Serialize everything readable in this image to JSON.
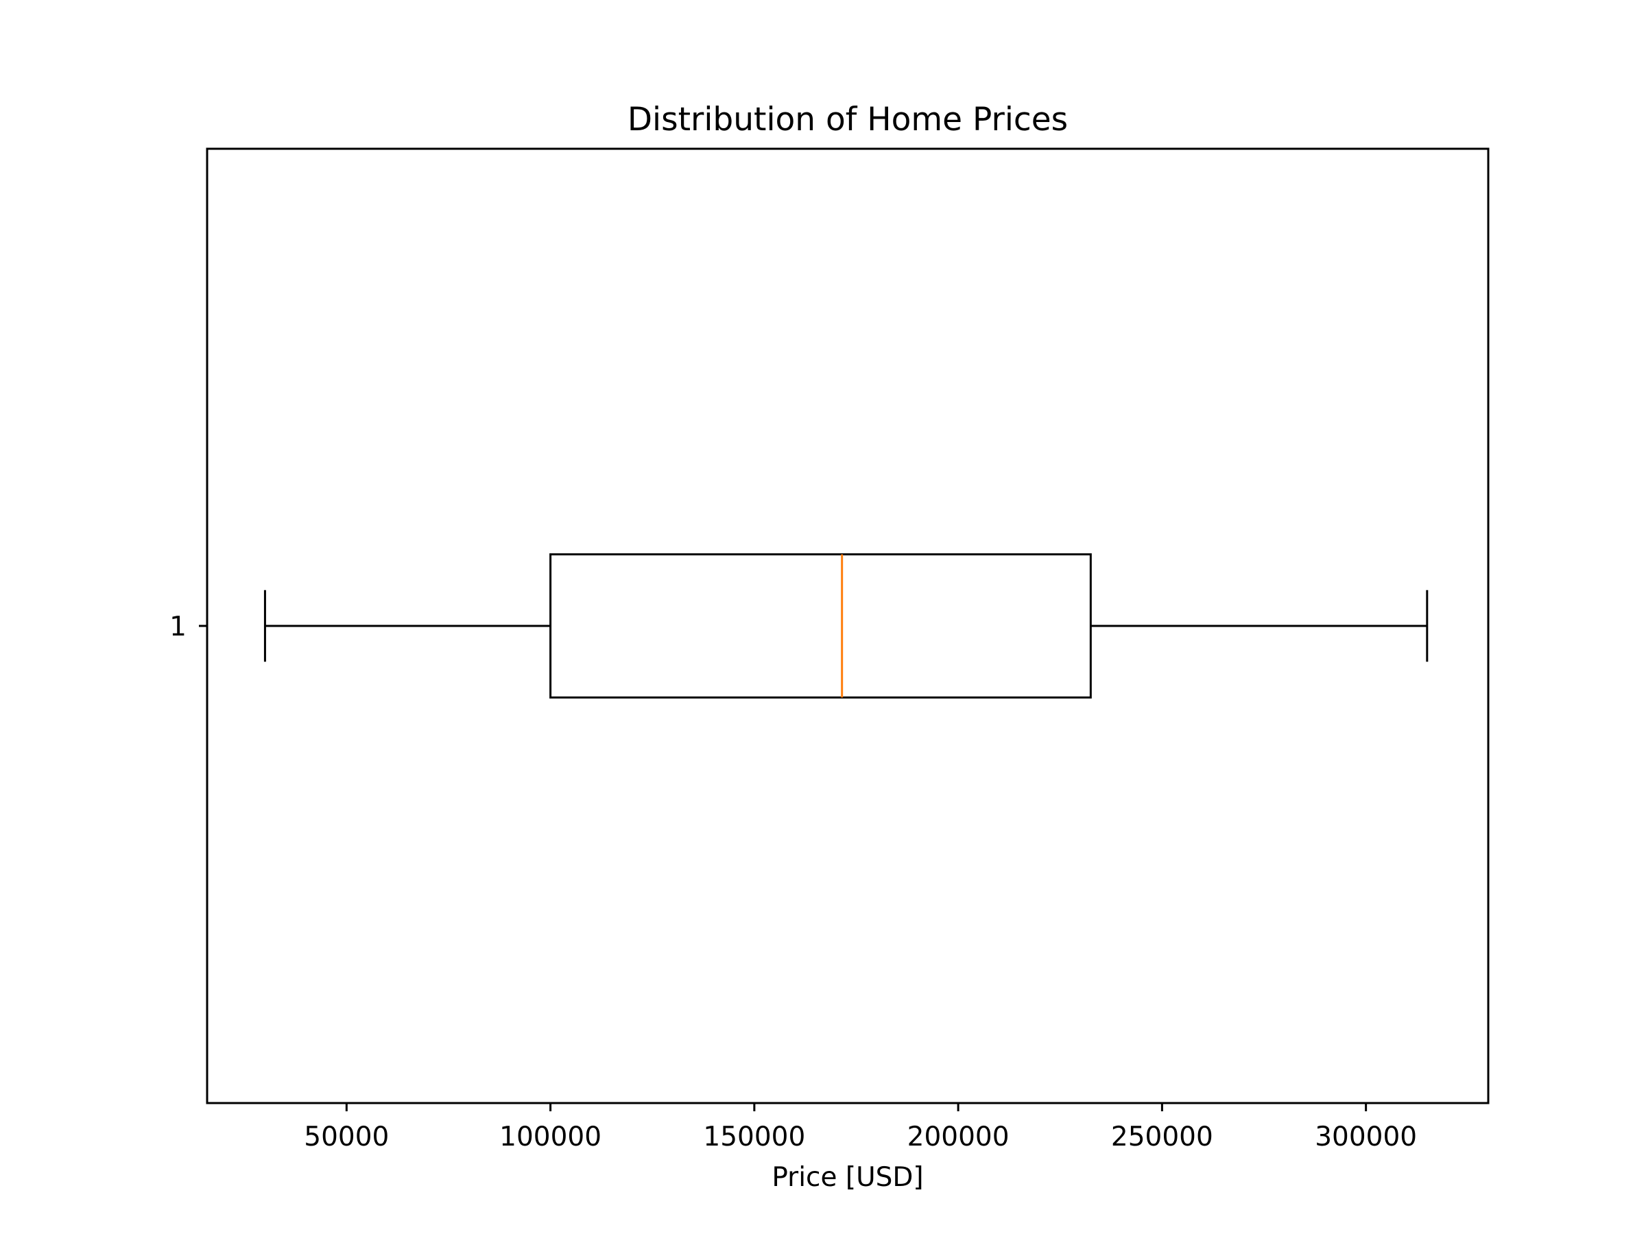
{
  "chart_data": {
    "type": "boxplot",
    "orientation": "horizontal",
    "title": "Distribution of Home Prices",
    "xlabel": "Price [USD]",
    "ylabel": "",
    "xlim": [
      15800,
      330000
    ],
    "x_ticks": [
      50000,
      100000,
      150000,
      200000,
      250000,
      300000
    ],
    "x_tick_labels": [
      "50000",
      "100000",
      "150000",
      "200000",
      "250000",
      "300000"
    ],
    "categories": [
      "1"
    ],
    "series": [
      {
        "whisker_low": 30000,
        "q1": 100000,
        "median": 171500,
        "q3": 232500,
        "whisker_high": 315000
      }
    ],
    "grid": false,
    "colors": {
      "box": "#000000",
      "median": "#ff7f0e",
      "whisker": "#000000"
    }
  }
}
